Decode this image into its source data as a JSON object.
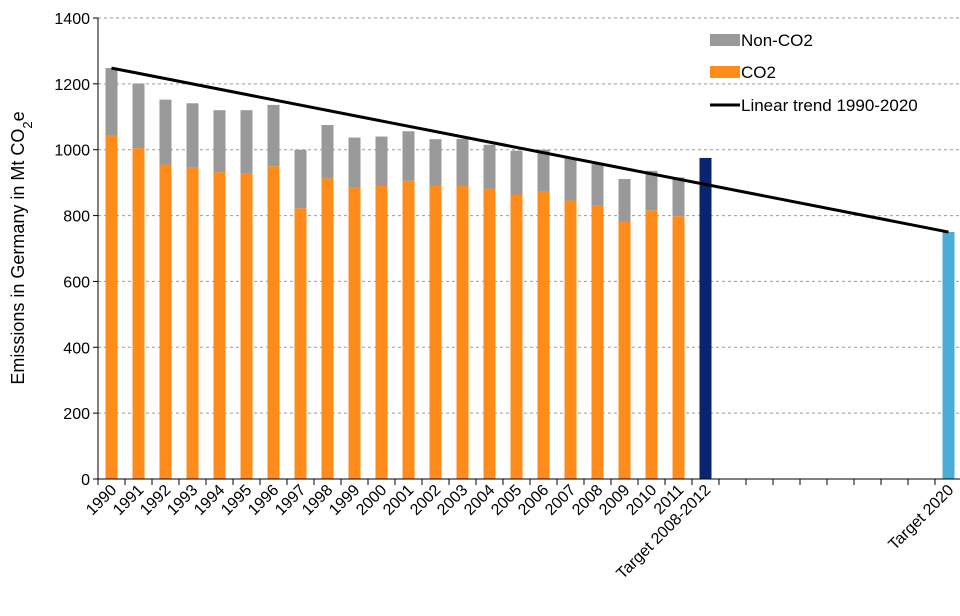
{
  "chart_data": {
    "type": "bar",
    "ylabel": "Emissions in Germany in Mt CO",
    "ylabel_sub": "2",
    "ylabel_suffix": "e",
    "ylim": [
      0,
      1400
    ],
    "yticks": [
      0,
      200,
      400,
      600,
      800,
      1000,
      1200,
      1400
    ],
    "grid": true,
    "legend_position": "top-right",
    "categories": [
      "1990",
      "1991",
      "1992",
      "1993",
      "1994",
      "1995",
      "1996",
      "1997",
      "1998",
      "1999",
      "2000",
      "2001",
      "2002",
      "2003",
      "2004",
      "2005",
      "2006",
      "2007",
      "2008",
      "2009",
      "2010",
      "2011",
      "Target 2008-2012",
      "",
      "",
      "",
      "",
      "",
      "",
      "",
      "",
      "Target 2020"
    ],
    "series": [
      {
        "name": "CO2",
        "color": "#ff8c1a",
        "values": [
          1042,
          1005,
          955,
          945,
          932,
          928,
          950,
          822,
          913,
          885,
          890,
          906,
          890,
          890,
          882,
          864,
          872,
          846,
          830,
          782,
          816,
          798,
          null,
          null,
          null,
          null,
          null,
          null,
          null,
          null,
          null,
          null
        ]
      },
      {
        "name": "Non-CO2",
        "color": "#999999",
        "values": [
          206,
          196,
          197,
          196,
          188,
          192,
          186,
          178,
          162,
          152,
          150,
          150,
          142,
          143,
          133,
          133,
          128,
          130,
          126,
          129,
          120,
          118,
          null,
          null,
          null,
          null,
          null,
          null,
          null,
          null,
          null,
          null
        ]
      }
    ],
    "targets": [
      {
        "category": "Target 2008-2012",
        "value": 975,
        "color": "#0a2470"
      },
      {
        "category": "Target 2020",
        "value": 750,
        "color": "#4bacd6"
      }
    ],
    "trend": {
      "name": "Linear trend 1990-2020",
      "color": "#000000",
      "start_value": 1248,
      "end_value": 750
    }
  }
}
